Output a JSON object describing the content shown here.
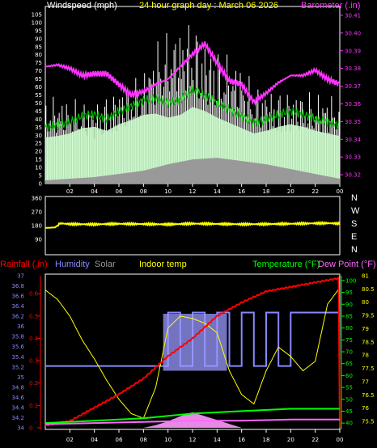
{
  "chart_data": [
    {
      "type": "line",
      "panel": "wind-barometer",
      "left_label": "Windspeed (mph)",
      "title": "24 hour graph day : March 06 2026",
      "right_label": "Barometer (.in)",
      "x_ticks": [
        "02",
        "04",
        "06",
        "08",
        "10",
        "12",
        "14",
        "16",
        "18",
        "20",
        "22",
        "00"
      ],
      "left_ticks": [
        "0",
        "5",
        "10",
        "15",
        "20",
        "25",
        "30",
        "35",
        "40",
        "45",
        "50",
        "55",
        "60",
        "65",
        "70",
        "75",
        "80",
        "85",
        "90",
        "95",
        "100",
        "105"
      ],
      "right_ticks": [
        "30.32",
        "30.33",
        "30.34",
        "30.35",
        "30.36",
        "30.37",
        "30.38",
        "30.39",
        "30.40",
        "30.41"
      ],
      "left_range": [
        0,
        110
      ],
      "right_range": [
        30.315,
        30.415
      ],
      "series": [
        {
          "key": "barometer",
          "color": "#ff33ff",
          "x": [
            0,
            1,
            2,
            3,
            4,
            5,
            6,
            7,
            8,
            9,
            10,
            11,
            12,
            13,
            14,
            15,
            16,
            17,
            18,
            19,
            20,
            21,
            22,
            23,
            24
          ],
          "values": [
            30.381,
            30.382,
            30.38,
            30.376,
            30.377,
            30.377,
            30.371,
            30.365,
            30.367,
            30.371,
            30.374,
            30.381,
            30.388,
            30.394,
            30.383,
            30.373,
            30.371,
            30.361,
            30.366,
            30.372,
            30.376,
            30.376,
            30.379,
            30.374,
            30.371
          ]
        },
        {
          "key": "gust",
          "color": "#ffffff",
          "x": [
            0,
            1,
            2,
            3,
            4,
            5,
            6,
            7,
            8,
            9,
            10,
            11,
            12,
            13,
            14,
            15,
            16,
            17,
            18,
            19,
            20,
            21,
            22,
            23,
            24
          ],
          "values": [
            55,
            55,
            53,
            52,
            50,
            55,
            60,
            65,
            70,
            90,
            95,
            100,
            103,
            90,
            85,
            80,
            75,
            62,
            60,
            58,
            58,
            58,
            57,
            57,
            55
          ]
        },
        {
          "key": "average-wind",
          "color": "#00cc00",
          "x": [
            0,
            1,
            2,
            3,
            4,
            5,
            6,
            7,
            8,
            9,
            10,
            11,
            12,
            13,
            14,
            15,
            16,
            17,
            18,
            19,
            20,
            21,
            22,
            23,
            24
          ],
          "values": [
            35,
            36,
            38,
            42,
            43,
            40,
            45,
            48,
            52,
            53,
            50,
            52,
            58,
            55,
            50,
            46,
            42,
            38,
            40,
            43,
            45,
            43,
            40,
            38,
            36
          ]
        },
        {
          "key": "min-wind",
          "color": "#aaaaaa",
          "x": [
            0,
            2,
            4,
            6,
            8,
            10,
            12,
            14,
            16,
            18,
            20,
            22,
            24
          ],
          "values": [
            2,
            3,
            4,
            6,
            8,
            12,
            15,
            16,
            14,
            12,
            9,
            6,
            3
          ]
        }
      ]
    },
    {
      "type": "line",
      "panel": "wind-direction",
      "left_ticks": [
        "90",
        "180",
        "270",
        "360"
      ],
      "direction_labels": [
        "N",
        "W",
        "S",
        "E",
        "N"
      ],
      "y_range": [
        0,
        360
      ],
      "series": [
        {
          "key": "direction",
          "color": "#ffff00",
          "x": [
            0,
            0.8,
            1.2,
            2,
            4,
            6,
            8,
            10,
            12,
            14,
            16,
            18,
            20,
            22,
            23,
            24
          ],
          "values": [
            165,
            168,
            195,
            190,
            188,
            192,
            190,
            188,
            193,
            191,
            189,
            190,
            192,
            195,
            196,
            193
          ]
        }
      ]
    },
    {
      "type": "line",
      "panel": "rain-humidity-temperature",
      "left_labels": [
        "Rainfall (.in)",
        "Humidity",
        "Solar",
        "Indoor temp"
      ],
      "right_labels": [
        "Temperature (°F)",
        "Dew Point (°F)"
      ],
      "rain_ticks": [
        "0",
        "0.1",
        "0.2",
        "0.3",
        "0.4",
        "0.5",
        "0.6"
      ],
      "indoor_ticks": [
        "34",
        "34.2",
        "34.4",
        "34.6",
        "34.8",
        "35",
        "35.2",
        "35.4",
        "35.6",
        "35.8",
        "36",
        "36.2",
        "36.4",
        "36.6",
        "36.8",
        "37"
      ],
      "temp_ticks": [
        "40",
        "45",
        "50",
        "55",
        "60",
        "65",
        "70",
        "75",
        "80",
        "85",
        "90",
        "95",
        "100"
      ],
      "dew_ticks": [
        "75.5",
        "76",
        "76.5",
        "77",
        "77.5",
        "78",
        "78.5",
        "79",
        "79.5",
        "80",
        "80.5",
        "81"
      ],
      "rain_range": [
        0,
        0.68
      ],
      "temp_range": [
        38,
        102
      ],
      "series": [
        {
          "key": "rainfall",
          "color": "#ff0000",
          "x": [
            0,
            2,
            4,
            6,
            8,
            10,
            12,
            14,
            16,
            18,
            20,
            22,
            24
          ],
          "values": [
            0.01,
            0.03,
            0.09,
            0.15,
            0.22,
            0.32,
            0.4,
            0.5,
            0.56,
            0.61,
            0.63,
            0.65,
            0.67
          ]
        },
        {
          "key": "humidity",
          "color": "#8888ff",
          "x": [
            0,
            2,
            4,
            6,
            8,
            9,
            10,
            11,
            12,
            13,
            14,
            15,
            16,
            17,
            18,
            19,
            20,
            22,
            23,
            24
          ],
          "values": [
            60,
            60,
            60,
            60,
            60,
            60,
            85,
            60,
            85,
            60,
            85,
            60,
            85,
            60,
            85,
            60,
            85,
            85,
            85,
            85
          ]
        },
        {
          "key": "indoor-temp",
          "color": "#ffff00",
          "x": [
            0,
            1,
            2,
            3,
            4,
            5,
            6,
            7,
            8,
            9,
            10,
            11,
            12,
            13,
            14,
            15,
            16,
            17,
            18,
            19,
            20,
            21,
            22,
            23,
            24
          ],
          "values": [
            96,
            92,
            85,
            75,
            67,
            58,
            50,
            44,
            42,
            55,
            80,
            85,
            84,
            82,
            78,
            62,
            52,
            48,
            62,
            72,
            68,
            62,
            66,
            90,
            97
          ]
        },
        {
          "key": "temperature",
          "color": "#00ff00",
          "x": [
            0,
            4,
            8,
            12,
            16,
            20,
            24
          ],
          "values": [
            40,
            41,
            42,
            44,
            45,
            46,
            46
          ]
        },
        {
          "key": "dew-point",
          "color": "#ff66ff",
          "x": [
            0,
            4,
            8,
            12,
            16,
            20,
            24
          ],
          "values": [
            39.5,
            40,
            40.5,
            41,
            41,
            41.5,
            41.5
          ]
        },
        {
          "key": "solar",
          "color": "#dddddd",
          "x": [
            0,
            8,
            9,
            10,
            11,
            12,
            13,
            14,
            15,
            16,
            24
          ],
          "values": [
            0,
            0,
            2,
            5,
            9,
            12,
            9,
            6,
            3,
            0,
            0
          ]
        }
      ]
    }
  ]
}
